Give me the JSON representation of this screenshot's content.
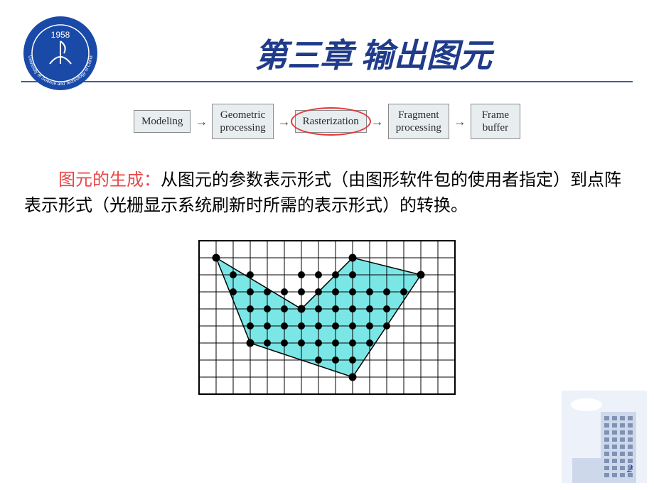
{
  "colors": {
    "background": "#ffffff",
    "title": "#1f3b8a",
    "underline": "#3a5bb0",
    "pipeline_box_bg": "#e8edf0",
    "pipeline_box_border": "#8a8a8a",
    "pipeline_text": "#2a2a2a",
    "arrow": "#4a4a4a",
    "highlight_ellipse": "#e03838",
    "body_text": "#000000",
    "lead_text": "#e84848",
    "grid_line": "#000000",
    "grid_bg": "#ffffff",
    "polygon_fill": "#7be6e6",
    "polygon_outline": "#000000",
    "dot": "#000000",
    "vertex": "#000000",
    "pagenum": "#1f3b8a",
    "logo_outer": "#1a4aa8",
    "logo_inner": "#ffffff",
    "logo_year": "#ffffff",
    "building": "#c6d2e8"
  },
  "logo": {
    "year": "1958",
    "ring_text": "University of Science and Technology of China"
  },
  "title": "第三章  输出图元",
  "pipeline": {
    "boxes": [
      {
        "lines": [
          "Modeling"
        ]
      },
      {
        "lines": [
          "Geometric",
          "processing"
        ]
      },
      {
        "lines": [
          "Rasterization"
        ]
      },
      {
        "lines": [
          "Fragment",
          "processing"
        ]
      },
      {
        "lines": [
          "Frame",
          "buffer"
        ]
      }
    ],
    "highlighted_index": 2
  },
  "body": {
    "lead": "图元的生成：",
    "text": "从图元的参数表示形式（由图形软件包的使用者指定）到点阵表示形式（光栅显示系统刷新时所需的表示形式）的转换。"
  },
  "raster": {
    "grid": {
      "cols": 15,
      "rows": 9,
      "cell": 24
    },
    "polygon_vertices": [
      [
        1,
        1
      ],
      [
        6,
        4
      ],
      [
        9,
        1
      ],
      [
        13,
        2
      ],
      [
        9,
        8
      ],
      [
        3,
        6
      ]
    ],
    "inside_dots": [
      [
        2,
        2
      ],
      [
        3,
        2
      ],
      [
        6,
        2
      ],
      [
        7,
        2
      ],
      [
        8,
        2
      ],
      [
        9,
        2
      ],
      [
        2,
        3
      ],
      [
        3,
        3
      ],
      [
        4,
        3
      ],
      [
        5,
        3
      ],
      [
        6,
        3
      ],
      [
        7,
        3
      ],
      [
        8,
        3
      ],
      [
        9,
        3
      ],
      [
        10,
        3
      ],
      [
        11,
        3
      ],
      [
        12,
        3
      ],
      [
        3,
        4
      ],
      [
        4,
        4
      ],
      [
        5,
        4
      ],
      [
        6,
        4
      ],
      [
        7,
        4
      ],
      [
        8,
        4
      ],
      [
        9,
        4
      ],
      [
        10,
        4
      ],
      [
        11,
        4
      ],
      [
        11,
        5
      ],
      [
        3,
        5
      ],
      [
        4,
        5
      ],
      [
        5,
        5
      ],
      [
        6,
        5
      ],
      [
        7,
        5
      ],
      [
        8,
        5
      ],
      [
        9,
        5
      ],
      [
        10,
        5
      ],
      [
        4,
        6
      ],
      [
        5,
        6
      ],
      [
        6,
        6
      ],
      [
        7,
        6
      ],
      [
        8,
        6
      ],
      [
        9,
        6
      ],
      [
        10,
        6
      ],
      [
        7,
        7
      ],
      [
        8,
        7
      ],
      [
        9,
        7
      ]
    ]
  },
  "pagenum": "2"
}
